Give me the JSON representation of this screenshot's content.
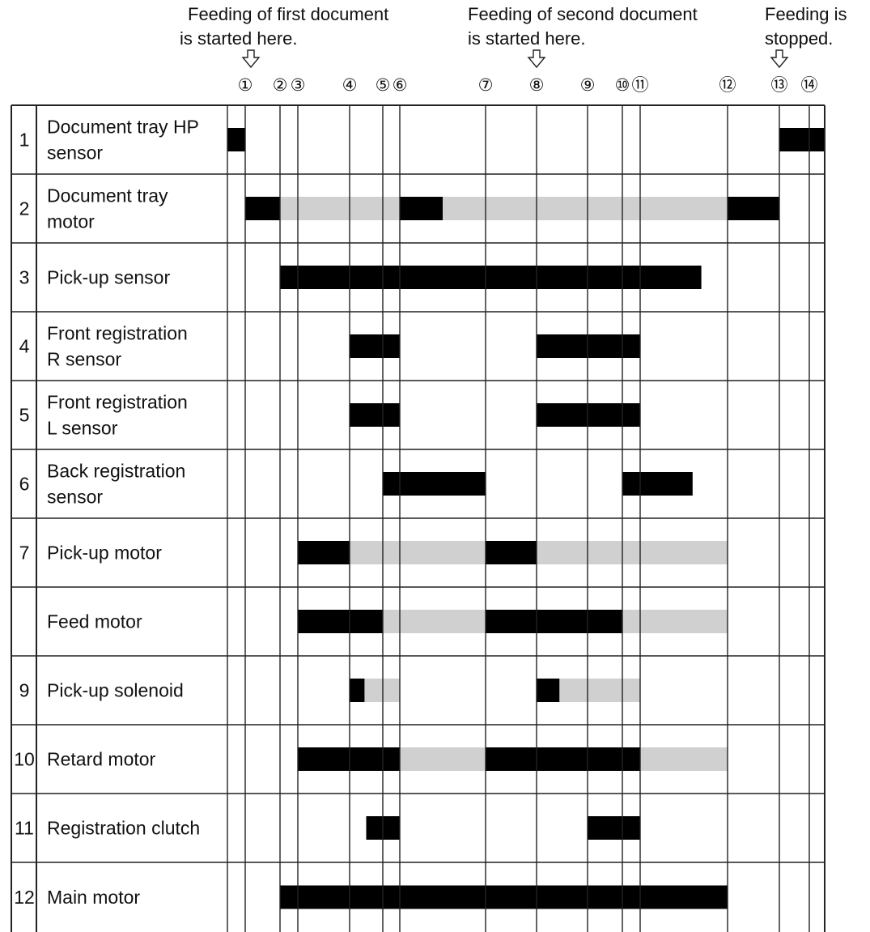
{
  "header_notes": [
    {
      "lines": [
        "Feeding of first document",
        "is started here."
      ]
    },
    {
      "lines": [
        "Feeding of second document",
        "is started here."
      ]
    },
    {
      "lines": [
        "Feeding is",
        "stopped."
      ]
    }
  ],
  "timing_points": [
    "①",
    "②",
    "③",
    "④",
    "⑤",
    "⑥",
    "⑦",
    "⑧",
    "⑨",
    "⑩",
    "⑪",
    "⑫",
    "⑬",
    "⑭"
  ],
  "signals": [
    {
      "number": "1",
      "label_lines": [
        "Document tray HP",
        "sensor"
      ],
      "segments": [
        {
          "from": 0,
          "to": 1,
          "state": "on"
        },
        {
          "from": 13,
          "to": "end",
          "state": "on"
        }
      ]
    },
    {
      "number": "2",
      "label_lines": [
        "Document tray",
        "motor"
      ],
      "segments": [
        {
          "from": 1,
          "to": 2,
          "state": "on"
        },
        {
          "from": 2,
          "to": 6,
          "state": "hold"
        },
        {
          "from": 6,
          "to": 6.5,
          "state": "on"
        },
        {
          "from": 6.5,
          "to": 12,
          "state": "hold"
        },
        {
          "from": 12,
          "to": 13,
          "state": "on"
        }
      ]
    },
    {
      "number": "3",
      "label_lines": [
        "Pick-up sensor"
      ],
      "segments": [
        {
          "from": 2,
          "to": 11.7,
          "state": "on"
        }
      ]
    },
    {
      "number": "4",
      "label_lines": [
        "Front registration",
        "R sensor"
      ],
      "segments": [
        {
          "from": 4,
          "to": 6,
          "state": "on"
        },
        {
          "from": 8,
          "to": 11,
          "state": "on"
        }
      ]
    },
    {
      "number": "5",
      "label_lines": [
        "Front registration",
        "L sensor"
      ],
      "segments": [
        {
          "from": 4,
          "to": 6,
          "state": "on"
        },
        {
          "from": 8,
          "to": 11,
          "state": "on"
        }
      ]
    },
    {
      "number": "6",
      "label_lines": [
        "Back registration",
        "sensor"
      ],
      "segments": [
        {
          "from": 5,
          "to": 7,
          "state": "on"
        },
        {
          "from": 10,
          "to": 11.6,
          "state": "on"
        }
      ]
    },
    {
      "number": "7",
      "label_lines": [
        "Pick-up motor"
      ],
      "segments": [
        {
          "from": 3,
          "to": 4,
          "state": "on"
        },
        {
          "from": 4,
          "to": 7,
          "state": "hold"
        },
        {
          "from": 7,
          "to": 8,
          "state": "on"
        },
        {
          "from": 8,
          "to": 12,
          "state": "hold"
        }
      ]
    },
    {
      "number": "",
      "label_lines": [
        "Feed motor"
      ],
      "segments": [
        {
          "from": 3,
          "to": 5,
          "state": "on"
        },
        {
          "from": 5,
          "to": 7,
          "state": "hold"
        },
        {
          "from": 7,
          "to": 10,
          "state": "on"
        },
        {
          "from": 10,
          "to": 12,
          "state": "hold"
        }
      ]
    },
    {
      "number": "9",
      "label_lines": [
        "Pick-up solenoid"
      ],
      "segments": [
        {
          "from": 4,
          "to": 4.45,
          "state": "on"
        },
        {
          "from": 4.45,
          "to": 6,
          "state": "hold"
        },
        {
          "from": 8,
          "to": 8.45,
          "state": "on"
        },
        {
          "from": 8.45,
          "to": 11,
          "state": "hold"
        }
      ]
    },
    {
      "number": "10",
      "label_lines": [
        "Retard motor"
      ],
      "segments": [
        {
          "from": 3,
          "to": 6,
          "state": "on"
        },
        {
          "from": 6,
          "to": 7,
          "state": "hold"
        },
        {
          "from": 7,
          "to": 11,
          "state": "on"
        },
        {
          "from": 11,
          "to": 12,
          "state": "hold"
        }
      ]
    },
    {
      "number": "11",
      "label_lines": [
        "Registration clutch"
      ],
      "segments": [
        {
          "from": 4.5,
          "to": 6,
          "state": "on"
        },
        {
          "from": 9,
          "to": 11,
          "state": "on"
        }
      ]
    },
    {
      "number": "12",
      "label_lines": [
        "Main motor"
      ],
      "segments": [
        {
          "from": 2,
          "to": 12,
          "state": "on"
        }
      ]
    }
  ],
  "colors": {
    "on": "#000000",
    "hold": "#d0d0d0",
    "grid": "#222222"
  }
}
